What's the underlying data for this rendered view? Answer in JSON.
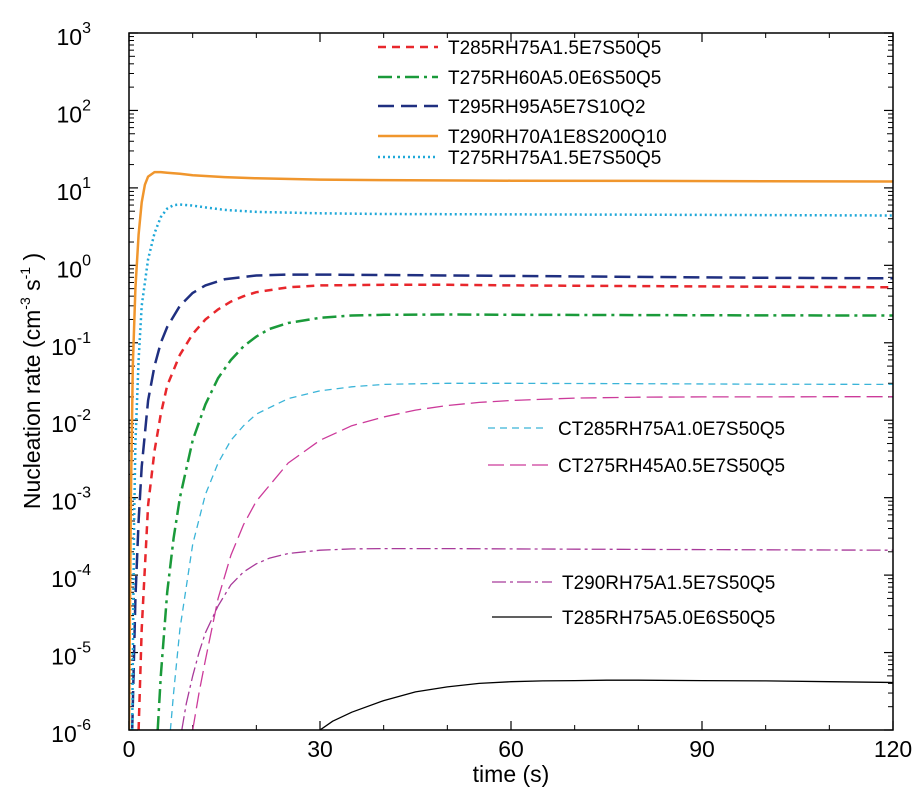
{
  "chart_data": {
    "type": "line",
    "xlabel": "time (s)",
    "ylabel_main": "Nucleation rate (cm",
    "ylabel_exp1": "-3",
    "ylabel_mid": " s",
    "ylabel_exp2": "-1",
    "ylabel_end": " )",
    "xlim": [
      0,
      120
    ],
    "ylim_log10": [
      -6,
      3
    ],
    "y_scale": "log",
    "x_ticks": [
      0,
      30,
      60,
      90,
      120
    ],
    "x_tick_labels": [
      "0",
      "30",
      "60",
      "90",
      "120"
    ],
    "y_ticks": [
      {
        "exp": 3,
        "label": "3"
      },
      {
        "exp": 2,
        "label": "2"
      },
      {
        "exp": 1,
        "label": "1"
      },
      {
        "exp": 0,
        "label": "0"
      },
      {
        "exp": -1,
        "label": "-1"
      },
      {
        "exp": -2,
        "label": "-2"
      },
      {
        "exp": -3,
        "label": "-3"
      },
      {
        "exp": -4,
        "label": "-4"
      },
      {
        "exp": -5,
        "label": "-5"
      },
      {
        "exp": -6,
        "label": "-6"
      }
    ],
    "y_tick_base": "10",
    "grid": false,
    "legend_groups": [
      {
        "placement": "top-center",
        "entries": [
          0,
          1,
          2,
          3,
          4
        ]
      },
      {
        "placement": "center-right",
        "entries": [
          5,
          6
        ]
      },
      {
        "placement": "bottom-right",
        "entries": [
          7,
          8
        ]
      }
    ],
    "series": [
      {
        "name": "T285RH75A1.5E7S50Q5",
        "color": "#e8272c",
        "dash": "8,6",
        "width": 2.5,
        "x": [
          1.5,
          2,
          3,
          4,
          5,
          6,
          8,
          10,
          12,
          14,
          16,
          18,
          20,
          25,
          30,
          40,
          50,
          60,
          80,
          100,
          120
        ],
        "y": [
          1e-06,
          2e-05,
          0.0008,
          0.004,
          0.012,
          0.028,
          0.07,
          0.13,
          0.2,
          0.27,
          0.34,
          0.4,
          0.45,
          0.52,
          0.55,
          0.56,
          0.56,
          0.55,
          0.54,
          0.53,
          0.52
        ]
      },
      {
        "name": "T275RH60A5.0E6S50Q5",
        "color": "#1a9a3a",
        "dash": "14,5,3,5",
        "width": 2.5,
        "x": [
          4.5,
          5,
          6,
          7,
          8,
          10,
          12,
          14,
          16,
          18,
          20,
          22,
          25,
          30,
          35,
          40,
          50,
          60,
          80,
          100,
          120
        ],
        "y": [
          1e-06,
          5e-06,
          6e-05,
          0.0003,
          0.001,
          0.0055,
          0.016,
          0.035,
          0.06,
          0.09,
          0.12,
          0.15,
          0.18,
          0.21,
          0.225,
          0.23,
          0.232,
          0.23,
          0.228,
          0.226,
          0.225
        ]
      },
      {
        "name": "T295RH95A5E7S10Q2",
        "color": "#1f2f80",
        "dash": "16,7",
        "width": 2.5,
        "x": [
          0.5,
          1,
          1.5,
          2,
          3,
          4,
          5,
          6,
          8,
          10,
          12,
          15,
          20,
          25,
          30,
          40,
          50,
          60,
          80,
          100,
          120
        ],
        "y": [
          1e-06,
          5e-05,
          0.0005,
          0.0025,
          0.018,
          0.05,
          0.1,
          0.16,
          0.3,
          0.44,
          0.55,
          0.66,
          0.74,
          0.76,
          0.76,
          0.75,
          0.74,
          0.73,
          0.71,
          0.69,
          0.68
        ]
      },
      {
        "name": "T290RH70A1E8S200Q10",
        "color": "#f0962d",
        "dash": "",
        "width": 2.5,
        "x": [
          0,
          0.3,
          0.6,
          1,
          1.5,
          2,
          2.5,
          3,
          4,
          5,
          6,
          8,
          10,
          15,
          20,
          30,
          40,
          60,
          80,
          100,
          120
        ],
        "y": [
          1e-06,
          0.001,
          0.05,
          0.5,
          2.5,
          6.5,
          11,
          14,
          16,
          16,
          15.7,
          15.2,
          14.6,
          13.8,
          13.3,
          12.8,
          12.6,
          12.4,
          12.3,
          12.2,
          12.1
        ]
      },
      {
        "name": "T275RH75A1.5E7S50Q5",
        "color": "#1fa8d8",
        "dash": "2,3",
        "width": 2.5,
        "x": [
          0.5,
          0.8,
          1,
          1.5,
          2,
          3,
          4,
          5,
          6,
          7,
          8,
          10,
          12,
          15,
          20,
          30,
          40,
          60,
          80,
          100,
          120
        ],
        "y": [
          1e-06,
          0.0005,
          0.005,
          0.06,
          0.3,
          1.2,
          2.6,
          4.2,
          5.4,
          6,
          6.1,
          5.9,
          5.6,
          5.2,
          4.9,
          4.7,
          4.6,
          4.55,
          4.5,
          4.45,
          4.4
        ]
      },
      {
        "name": "CT285RH75A1.0E7S50Q5",
        "color": "#3ab4d8",
        "dash": "7,5",
        "width": 1.3,
        "x": [
          6.5,
          7,
          8,
          10,
          12,
          14,
          16,
          18,
          20,
          25,
          30,
          35,
          40,
          45,
          50,
          60,
          70,
          80,
          100,
          120
        ],
        "y": [
          1e-06,
          3e-06,
          2e-05,
          0.00025,
          0.0011,
          0.0028,
          0.0055,
          0.0085,
          0.012,
          0.019,
          0.024,
          0.027,
          0.029,
          0.0295,
          0.03,
          0.03,
          0.0298,
          0.0296,
          0.0292,
          0.029
        ]
      },
      {
        "name": "CT275RH45A0.5E7S50Q5",
        "color": "#cc3a9a",
        "dash": "16,6",
        "width": 1.3,
        "x": [
          10,
          11,
          12,
          14,
          16,
          18,
          20,
          25,
          30,
          35,
          40,
          45,
          50,
          55,
          60,
          70,
          80,
          90,
          100,
          110,
          120
        ],
        "y": [
          1e-06,
          3e-06,
          8e-06,
          5e-05,
          0.00018,
          0.00045,
          0.0009,
          0.0028,
          0.0055,
          0.0085,
          0.011,
          0.0135,
          0.0155,
          0.017,
          0.018,
          0.0193,
          0.0198,
          0.02,
          0.02,
          0.0201,
          0.0201
        ]
      },
      {
        "name": "T290RH75A1.5E7S50Q5",
        "color": "#a83a9a",
        "dash": "14,4,3,4",
        "width": 1.3,
        "x": [
          8.3,
          9,
          10,
          11,
          12,
          14,
          16,
          18,
          20,
          22,
          25,
          30,
          35,
          40,
          50,
          60,
          80,
          100,
          120
        ],
        "y": [
          1e-06,
          2.2e-06,
          5e-06,
          1e-05,
          1.8e-05,
          4e-05,
          7.5e-05,
          0.00011,
          0.00014,
          0.000165,
          0.00019,
          0.00021,
          0.000218,
          0.00022,
          0.00022,
          0.000218,
          0.000215,
          0.000212,
          0.00021
        ]
      },
      {
        "name": "T285RH75A5.0E6S50Q5",
        "color": "#000000",
        "dash": "",
        "width": 1.3,
        "x": [
          30,
          32,
          35,
          40,
          45,
          50,
          55,
          60,
          65,
          70,
          75,
          80,
          90,
          100,
          110,
          120
        ],
        "y": [
          1e-06,
          1.3e-06,
          1.7e-06,
          2.4e-06,
          3.1e-06,
          3.6e-06,
          4e-06,
          4.2e-06,
          4.3e-06,
          4.35e-06,
          4.4e-06,
          4.4e-06,
          4.35e-06,
          4.3e-06,
          4.2e-06,
          4.1e-06
        ]
      }
    ]
  }
}
